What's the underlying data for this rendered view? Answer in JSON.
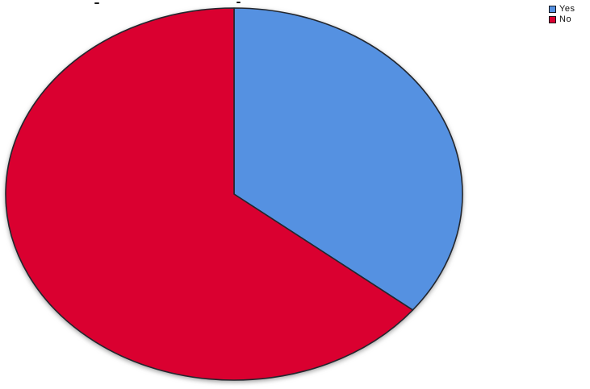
{
  "chart_data": {
    "type": "pie",
    "title": "",
    "labels": [
      "Yes",
      "No"
    ],
    "values": [
      35.7,
      64.3
    ],
    "unit": "percent",
    "colors": [
      "#5591E1",
      "#DA0030"
    ],
    "stroke_color": "#23272E",
    "background": "#FFFFFF",
    "start_angle_deg": 0,
    "direction": "clockwise",
    "legend": {
      "position": "top-right",
      "entries": [
        {
          "label": "Yes",
          "color": "#5591E1"
        },
        {
          "label": "No",
          "color": "#DA0030"
        }
      ]
    }
  }
}
